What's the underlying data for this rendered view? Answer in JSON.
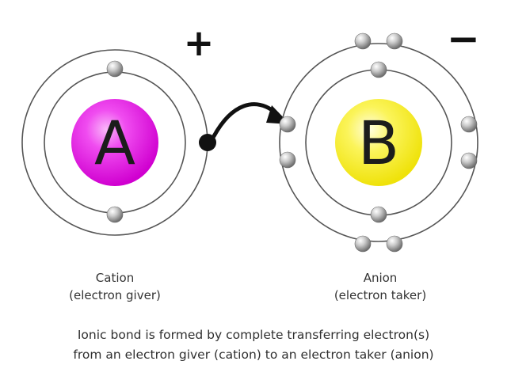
{
  "atoms": {
    "cation": {
      "symbol": "A",
      "charge": "+",
      "name": "Cation",
      "role": "(electron giver)",
      "core_color": "#e61ee6"
    },
    "anion": {
      "symbol": "B",
      "charge": "−",
      "name": "Anion",
      "role": "(electron taker)",
      "core_color": "#f2ea1e"
    }
  },
  "caption": {
    "line1": "Ionic bond is formed by complete transferring electron(s)",
    "line2": "from an electron giver (cation) to an electron taker (anion)"
  }
}
